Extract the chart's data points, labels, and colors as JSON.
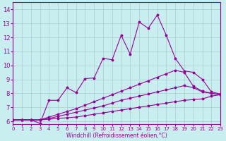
{
  "xlabel": "Windchill (Refroidissement éolien,°C)",
  "xlim": [
    0,
    23
  ],
  "ylim": [
    5.8,
    14.5
  ],
  "xticks": [
    0,
    1,
    2,
    3,
    4,
    5,
    6,
    7,
    8,
    9,
    10,
    11,
    12,
    13,
    14,
    15,
    16,
    17,
    18,
    19,
    20,
    21,
    22,
    23
  ],
  "yticks": [
    6,
    7,
    8,
    9,
    10,
    11,
    12,
    13,
    14
  ],
  "bg_color": "#c8eef0",
  "line_color": "#990099",
  "grid_color": "#aacccc",
  "line1_x": [
    0,
    1,
    2,
    3,
    4,
    5,
    6,
    7,
    8,
    9,
    10,
    11,
    12,
    13,
    14,
    15,
    16,
    17,
    18,
    19,
    20,
    21,
    22,
    23
  ],
  "line1_y": [
    6.1,
    6.1,
    6.1,
    6.1,
    6.15,
    6.2,
    6.25,
    6.3,
    6.4,
    6.5,
    6.6,
    6.7,
    6.8,
    6.9,
    7.0,
    7.1,
    7.2,
    7.3,
    7.4,
    7.5,
    7.55,
    7.6,
    7.8,
    7.9
  ],
  "line2_x": [
    0,
    1,
    2,
    3,
    4,
    5,
    6,
    7,
    8,
    9,
    10,
    11,
    12,
    13,
    14,
    15,
    16,
    17,
    18,
    19,
    20,
    21,
    22,
    23
  ],
  "line2_y": [
    6.1,
    6.1,
    6.1,
    6.1,
    6.2,
    6.35,
    6.5,
    6.65,
    6.8,
    6.95,
    7.1,
    7.3,
    7.5,
    7.65,
    7.8,
    7.95,
    8.1,
    8.25,
    8.4,
    8.55,
    8.4,
    8.1,
    8.0,
    7.9
  ],
  "line3_x": [
    0,
    1,
    2,
    3,
    4,
    5,
    6,
    7,
    8,
    9,
    10,
    11,
    12,
    13,
    14,
    15,
    16,
    17,
    18,
    19,
    20,
    21,
    22,
    23
  ],
  "line3_y": [
    6.1,
    6.1,
    6.1,
    6.1,
    6.3,
    6.5,
    6.7,
    6.9,
    7.15,
    7.4,
    7.65,
    7.9,
    8.15,
    8.4,
    8.65,
    8.9,
    9.15,
    9.4,
    9.65,
    9.5,
    8.5,
    8.15,
    8.0,
    7.9
  ],
  "line4_x": [
    0,
    1,
    2,
    3,
    4,
    5,
    6,
    7,
    8,
    9,
    10,
    11,
    12,
    13,
    14,
    15,
    16,
    17,
    18,
    19,
    20,
    21,
    22,
    23
  ],
  "line4_y": [
    6.1,
    6.1,
    6.1,
    5.85,
    7.5,
    7.5,
    8.4,
    8.05,
    9.05,
    9.1,
    10.5,
    10.4,
    12.15,
    10.8,
    13.1,
    12.65,
    13.6,
    12.15,
    10.5,
    9.6,
    9.5,
    9.0,
    8.1,
    7.95
  ]
}
